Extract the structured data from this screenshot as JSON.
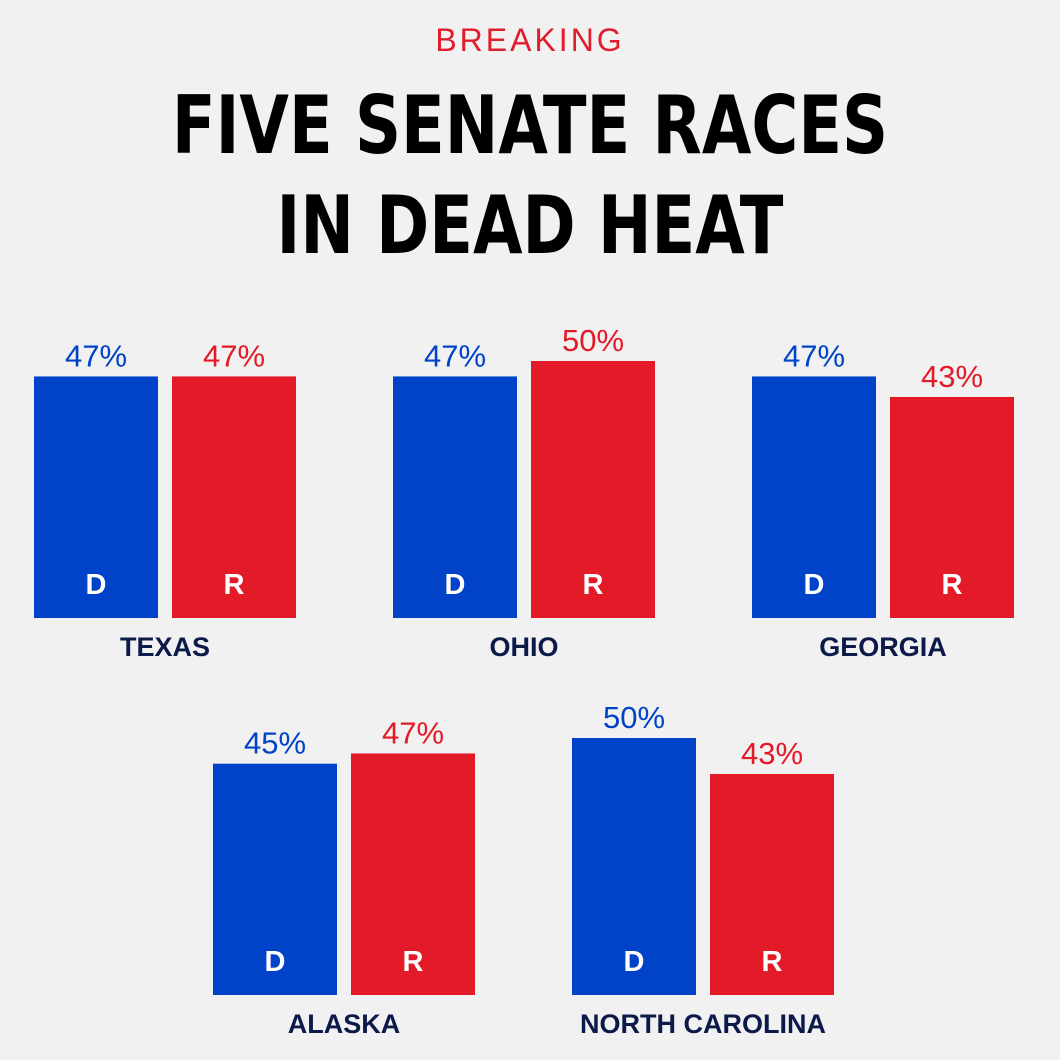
{
  "header": {
    "kicker": "BREAKING",
    "headline_line1": "FIVE SENATE RACES",
    "headline_line2": "IN DEAD HEAT"
  },
  "colors": {
    "background": "#f2f1f1",
    "democrat": "#0043c9",
    "republican": "#e31b28",
    "state_label": "#0c1a4a",
    "kicker": "#e01d2c"
  },
  "chart_data": [
    {
      "type": "bar",
      "state": "TEXAS",
      "categories": [
        "D",
        "R"
      ],
      "values": [
        47,
        47
      ],
      "value_labels": [
        "47%",
        "47%"
      ]
    },
    {
      "type": "bar",
      "state": "OHIO",
      "categories": [
        "D",
        "R"
      ],
      "values": [
        47,
        50
      ],
      "value_labels": [
        "47%",
        "50%"
      ]
    },
    {
      "type": "bar",
      "state": "GEORGIA",
      "categories": [
        "D",
        "R"
      ],
      "values": [
        47,
        43
      ],
      "value_labels": [
        "47%",
        "43%"
      ]
    },
    {
      "type": "bar",
      "state": "ALASKA",
      "categories": [
        "D",
        "R"
      ],
      "values": [
        45,
        47
      ],
      "value_labels": [
        "45%",
        "47%"
      ]
    },
    {
      "type": "bar",
      "state": "NORTH CAROLINA",
      "categories": [
        "D",
        "R"
      ],
      "values": [
        50,
        43
      ],
      "value_labels": [
        "50%",
        "43%"
      ]
    }
  ]
}
